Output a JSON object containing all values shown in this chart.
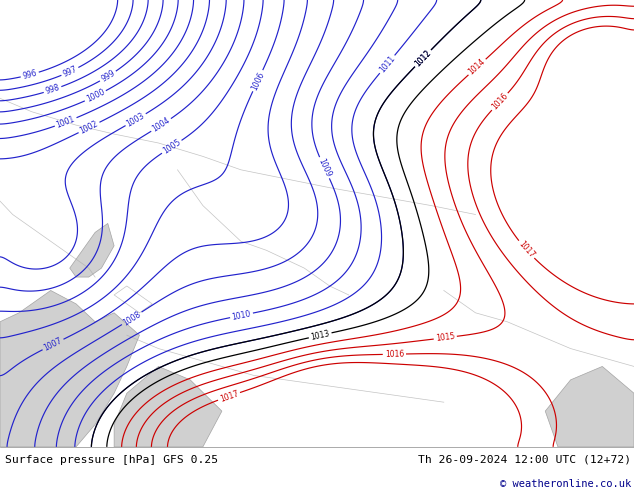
{
  "title_left": "Surface pressure [hPa] GFS 0.25",
  "title_right": "Th 26-09-2024 12:00 UTC (12+72)",
  "copyright": "© weatheronline.co.uk",
  "map_bg": "#b3e882",
  "contour_blue": "#2222cc",
  "contour_black": "#000000",
  "contour_red": "#cc0000",
  "land_gray": "#c8c8c8",
  "border_gray": "#aaaaaa",
  "footer_bg": "#ffffff",
  "footer_text": "#000000",
  "footer_copy_color": "#00008b"
}
